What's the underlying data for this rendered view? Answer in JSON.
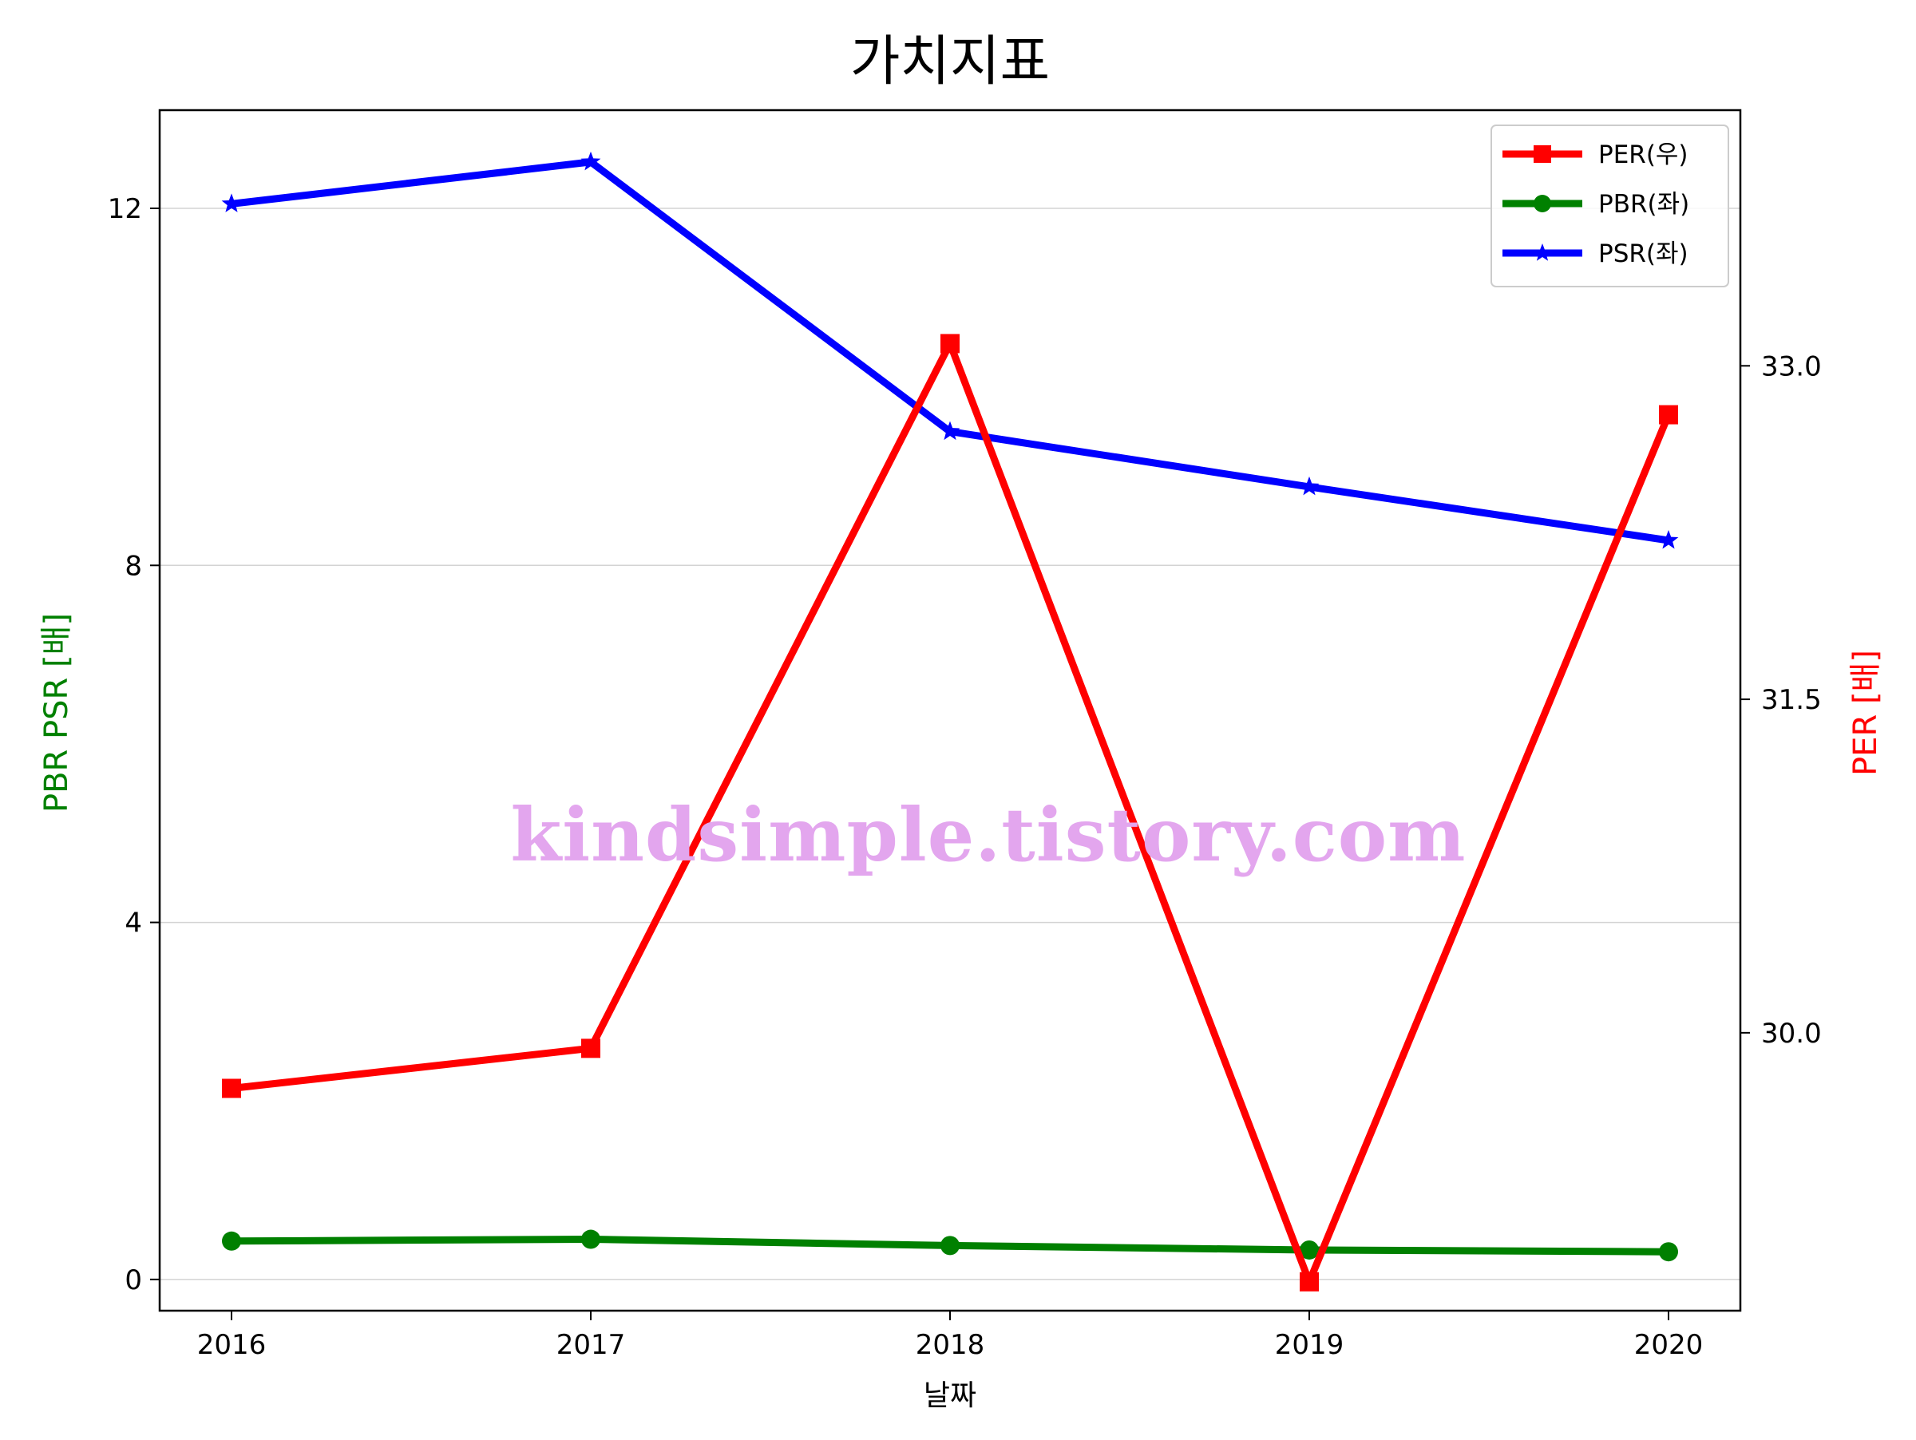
{
  "chart_data": {
    "type": "line",
    "title": "가치지표",
    "xlabel": "날짜",
    "ylabel_left": "PBR PSR [배]",
    "ylabel_right": "PER [배]",
    "categories": [
      "2016",
      "2017",
      "2018",
      "2019",
      "2020"
    ],
    "left_axis": {
      "ylim": [
        -0.35,
        13.1
      ],
      "ticks": [
        0,
        4,
        8,
        12
      ],
      "tick_labels": [
        "0",
        "4",
        "8",
        "12"
      ]
    },
    "right_axis": {
      "ylim": [
        28.75,
        34.15
      ],
      "ticks": [
        30.0,
        31.5,
        33.0
      ],
      "tick_labels": [
        "30.0",
        "31.5",
        "33.0"
      ]
    },
    "grid": "horizontal",
    "legend_position": "top-right",
    "series": [
      {
        "name": "PER(우)",
        "axis": "right",
        "color": "#ff0000",
        "marker": "square",
        "values": [
          29.75,
          29.93,
          33.1,
          28.88,
          32.78
        ]
      },
      {
        "name": "PBR(좌)",
        "axis": "left",
        "color": "#008000",
        "marker": "circle",
        "values": [
          0.43,
          0.45,
          0.38,
          0.33,
          0.31
        ]
      },
      {
        "name": "PSR(좌)",
        "axis": "left",
        "color": "#0000ff",
        "marker": "star",
        "values": [
          12.05,
          12.52,
          9.5,
          8.88,
          8.28
        ]
      }
    ],
    "watermark": "kindsimple.tistory.com"
  }
}
